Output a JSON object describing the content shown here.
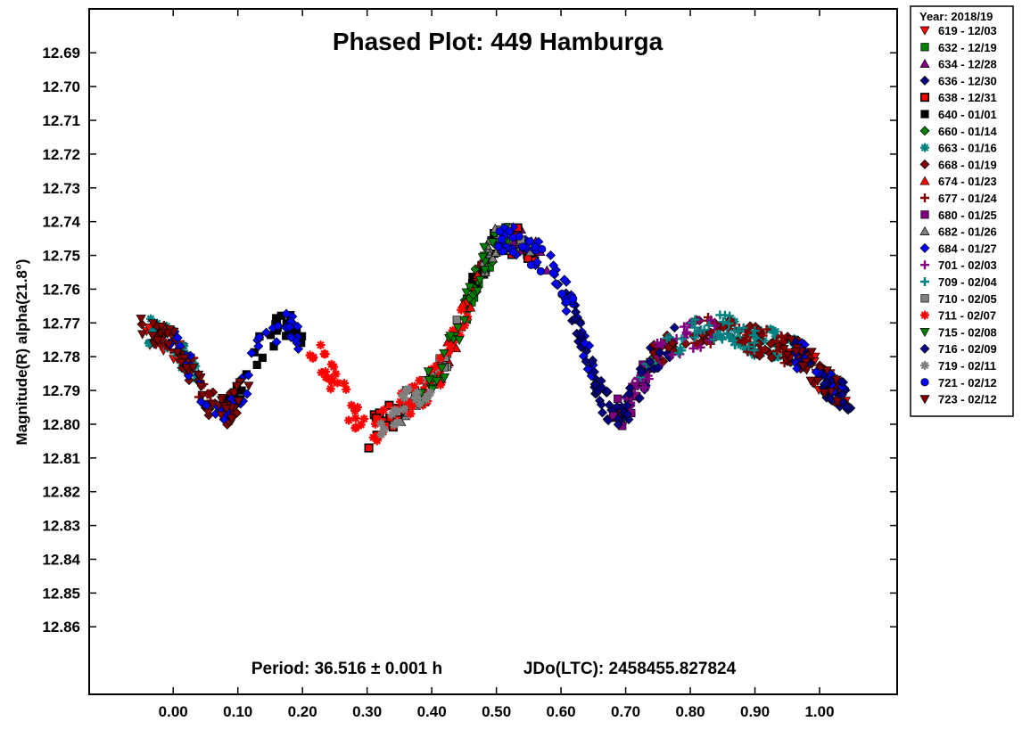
{
  "chart_data": {
    "type": "scatter",
    "title": "Phased Plot: 449 Hamburga",
    "ylabel": "Magnitude(R) alpha(21.8°)",
    "xlabel": "",
    "xlim": [
      -0.13,
      1.12
    ],
    "ylim": [
      12.88,
      12.677
    ],
    "y_inverted": true,
    "x_ticks": [
      "0.00",
      "0.10",
      "0.20",
      "0.30",
      "0.40",
      "0.50",
      "0.60",
      "0.70",
      "0.80",
      "0.90",
      "1.00"
    ],
    "y_ticks": [
      "12.69",
      "12.70",
      "12.71",
      "12.72",
      "12.73",
      "12.74",
      "12.75",
      "12.76",
      "12.77",
      "12.78",
      "12.79",
      "12.80",
      "12.81",
      "12.82",
      "12.83",
      "12.84",
      "12.85",
      "12.86"
    ],
    "footer": {
      "period": "Period: 36.516 ± 0.001 h",
      "epoch": "JDo(LTC): 2458455.827824"
    },
    "legend_title": "Year: 2018/19",
    "legend_placement": "right",
    "lightcurve": [
      [
        -0.05,
        12.772
      ],
      [
        0.0,
        12.776
      ],
      [
        0.03,
        12.784
      ],
      [
        0.05,
        12.792
      ],
      [
        0.07,
        12.797
      ],
      [
        0.09,
        12.795
      ],
      [
        0.11,
        12.789
      ],
      [
        0.13,
        12.779
      ],
      [
        0.15,
        12.773
      ],
      [
        0.18,
        12.771
      ],
      [
        0.2,
        12.775
      ],
      [
        0.22,
        12.779
      ],
      [
        0.24,
        12.784
      ],
      [
        0.26,
        12.79
      ],
      [
        0.28,
        12.798
      ],
      [
        0.3,
        12.803
      ],
      [
        0.32,
        12.8
      ],
      [
        0.34,
        12.797
      ],
      [
        0.37,
        12.793
      ],
      [
        0.4,
        12.788
      ],
      [
        0.42,
        12.782
      ],
      [
        0.44,
        12.773
      ],
      [
        0.46,
        12.762
      ],
      [
        0.48,
        12.752
      ],
      [
        0.5,
        12.746
      ],
      [
        0.52,
        12.745
      ],
      [
        0.54,
        12.747
      ],
      [
        0.56,
        12.749
      ],
      [
        0.58,
        12.753
      ],
      [
        0.6,
        12.759
      ],
      [
        0.62,
        12.767
      ],
      [
        0.64,
        12.779
      ],
      [
        0.66,
        12.791
      ],
      [
        0.68,
        12.797
      ],
      [
        0.7,
        12.796
      ],
      [
        0.72,
        12.789
      ],
      [
        0.74,
        12.781
      ],
      [
        0.77,
        12.776
      ],
      [
        0.8,
        12.774
      ],
      [
        0.83,
        12.772
      ],
      [
        0.86,
        12.772
      ],
      [
        0.89,
        12.775
      ],
      [
        0.92,
        12.776
      ],
      [
        0.95,
        12.778
      ],
      [
        0.98,
        12.781
      ],
      [
        1.0,
        12.786
      ],
      [
        1.02,
        12.79
      ],
      [
        1.05,
        12.793
      ]
    ],
    "series": [
      {
        "name": "619 - 12/03",
        "marker": "triangle-down",
        "color": "#ff0000",
        "segments": [
          [
            -0.05,
            0.03
          ],
          [
            0.95,
            1.05
          ]
        ]
      },
      {
        "name": "632 - 12/19",
        "marker": "square",
        "color": "#008000",
        "segments": [
          [
            0.45,
            0.5
          ]
        ]
      },
      {
        "name": "634 - 12/28",
        "marker": "triangle",
        "color": "#800080",
        "segments": [
          [
            0.52,
            0.58
          ]
        ]
      },
      {
        "name": "636 - 12/30",
        "marker": "diamond",
        "color": "#000080",
        "segments": [
          [
            0.6,
            0.78
          ],
          [
            1.0,
            1.05
          ]
        ]
      },
      {
        "name": "638 - 12/31",
        "marker": "square-outline",
        "color": "#ff0000",
        "segments": [
          [
            0.3,
            0.36
          ],
          [
            0.52,
            0.56
          ]
        ]
      },
      {
        "name": "640 - 01/01",
        "marker": "square",
        "color": "#000000",
        "segments": [
          [
            0.08,
            0.2
          ],
          [
            0.46,
            0.5
          ]
        ]
      },
      {
        "name": "660 - 01/14",
        "marker": "diamond",
        "color": "#008000",
        "segments": [
          [
            0.43,
            0.5
          ]
        ]
      },
      {
        "name": "663 - 01/16",
        "marker": "asterisk",
        "color": "#008080",
        "segments": [
          [
            -0.05,
            0.04
          ],
          [
            0.86,
            0.98
          ]
        ]
      },
      {
        "name": "668 - 01/19",
        "marker": "diamond",
        "color": "#800000",
        "segments": [
          [
            -0.05,
            0.1
          ],
          [
            0.74,
            1.05
          ]
        ]
      },
      {
        "name": "674 - 01/23",
        "marker": "triangle",
        "color": "#ff0000",
        "segments": [
          [
            0.42,
            0.48
          ]
        ]
      },
      {
        "name": "677 - 01/24",
        "marker": "plus",
        "color": "#800000",
        "segments": [
          [
            -0.03,
            0.06
          ],
          [
            0.8,
            0.95
          ]
        ]
      },
      {
        "name": "680 - 01/25",
        "marker": "square",
        "color": "#800080",
        "segments": [
          [
            0.68,
            0.75
          ]
        ]
      },
      {
        "name": "682 - 01/26",
        "marker": "triangle",
        "color": "#808080",
        "segments": [
          [
            0.34,
            0.4
          ],
          [
            0.48,
            0.56
          ]
        ]
      },
      {
        "name": "684 - 01/27",
        "marker": "diamond",
        "color": "#0000ff",
        "segments": [
          [
            -0.01,
            0.2
          ],
          [
            0.52,
            0.66
          ],
          [
            0.96,
            1.05
          ]
        ]
      },
      {
        "name": "701 - 02/03",
        "marker": "plus",
        "color": "#800080",
        "segments": [
          [
            0.69,
            0.84
          ]
        ]
      },
      {
        "name": "709 - 02/04",
        "marker": "plus",
        "color": "#008080",
        "segments": [
          [
            0.72,
            0.9
          ]
        ]
      },
      {
        "name": "710 - 02/05",
        "marker": "square",
        "color": "#808080",
        "segments": [
          [
            0.36,
            0.44
          ],
          [
            0.5,
            0.54
          ]
        ]
      },
      {
        "name": "711 - 02/07",
        "marker": "asterisk",
        "color": "#ff0000",
        "segments": [
          [
            0.2,
            0.46
          ]
        ]
      },
      {
        "name": "715 - 02/08",
        "marker": "triangle-down",
        "color": "#008000",
        "segments": [
          [
            0.38,
            0.52
          ]
        ]
      },
      {
        "name": "716 - 02/09",
        "marker": "diamond",
        "color": "#000080",
        "segments": [
          [
            0.62,
            0.76
          ],
          [
            0.96,
            1.05
          ]
        ]
      },
      {
        "name": "719 - 02/11",
        "marker": "asterisk",
        "color": "#808080",
        "segments": [
          [
            0.32,
            0.4
          ]
        ]
      },
      {
        "name": "721 - 02/12",
        "marker": "circle",
        "color": "#0000ff",
        "segments": [
          [
            0.5,
            0.62
          ]
        ]
      },
      {
        "name": "723 - 02/12",
        "marker": "triangle-down",
        "color": "#800000",
        "segments": [
          [
            -0.05,
            0.12
          ],
          [
            0.94,
            1.03
          ]
        ]
      }
    ]
  }
}
